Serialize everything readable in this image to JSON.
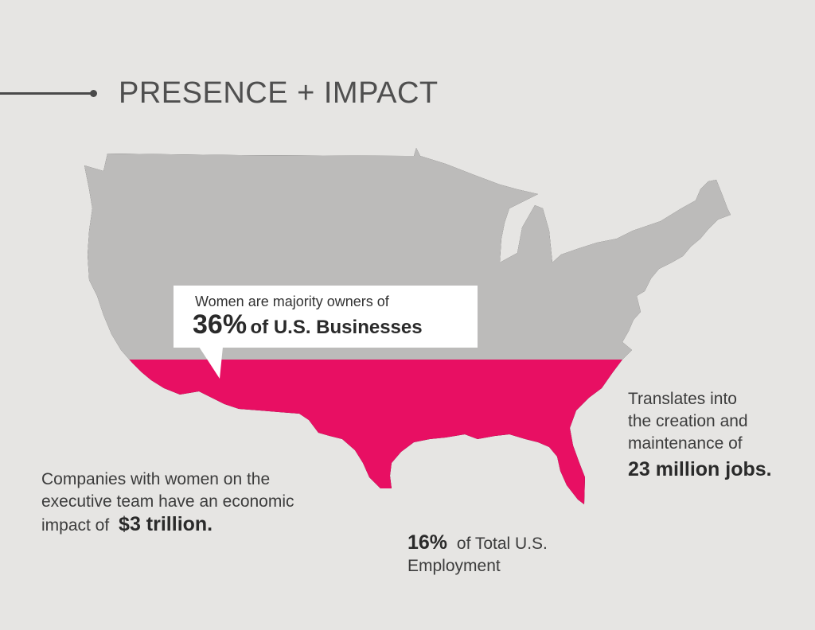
{
  "title": "PRESENCE + IMPACT",
  "colors": {
    "background": "#e6e5e3",
    "map_gray": "#bcbbba",
    "highlight": "#e80f63",
    "text": "#3c3c3c"
  },
  "callout": {
    "line1": "Women are majority owners of",
    "value": "36%",
    "rest": "of U.S. Businesses"
  },
  "jobs": {
    "line1": "Translates into",
    "line2": "the creation and",
    "line3": "maintenance of",
    "strong": "23 million jobs."
  },
  "exec": {
    "line1": "Companies with women on the",
    "line2": "executive team have an economic",
    "line3_prefix": "impact of",
    "strong": "$3 trillion."
  },
  "employment": {
    "strong": "16%",
    "rest": "of Total U.S.",
    "line2": "Employment"
  }
}
